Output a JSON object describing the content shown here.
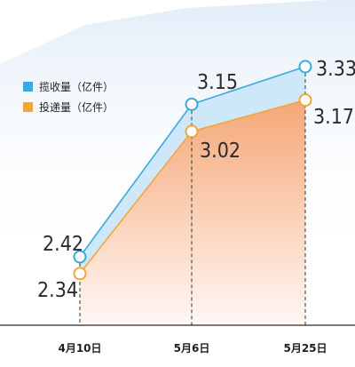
{
  "chart_data": {
    "type": "area",
    "categories": [
      "4月10日",
      "5月6日",
      "5月25日"
    ],
    "series": [
      {
        "name": "揽收量（亿件）",
        "values": [
          2.42,
          3.15,
          3.33
        ],
        "color": "#3aa9dd"
      },
      {
        "name": "投递量（亿件）",
        "values": [
          2.34,
          3.02,
          3.17
        ],
        "color": "#f2a53a"
      }
    ],
    "value_labels": {
      "series0": [
        "2.42",
        "3.15",
        "3.33"
      ],
      "series1": [
        "2.34",
        "3.02",
        "3.17"
      ]
    },
    "colors": {
      "background": "#ffffff",
      "top_band": "#e3edf8",
      "collect_fill": "#cfe8f9",
      "deliver_fill": "#f6a877",
      "axis": "#2b2b2b",
      "dashes": "#333333"
    },
    "grid": false,
    "legend_position": "top-left"
  }
}
